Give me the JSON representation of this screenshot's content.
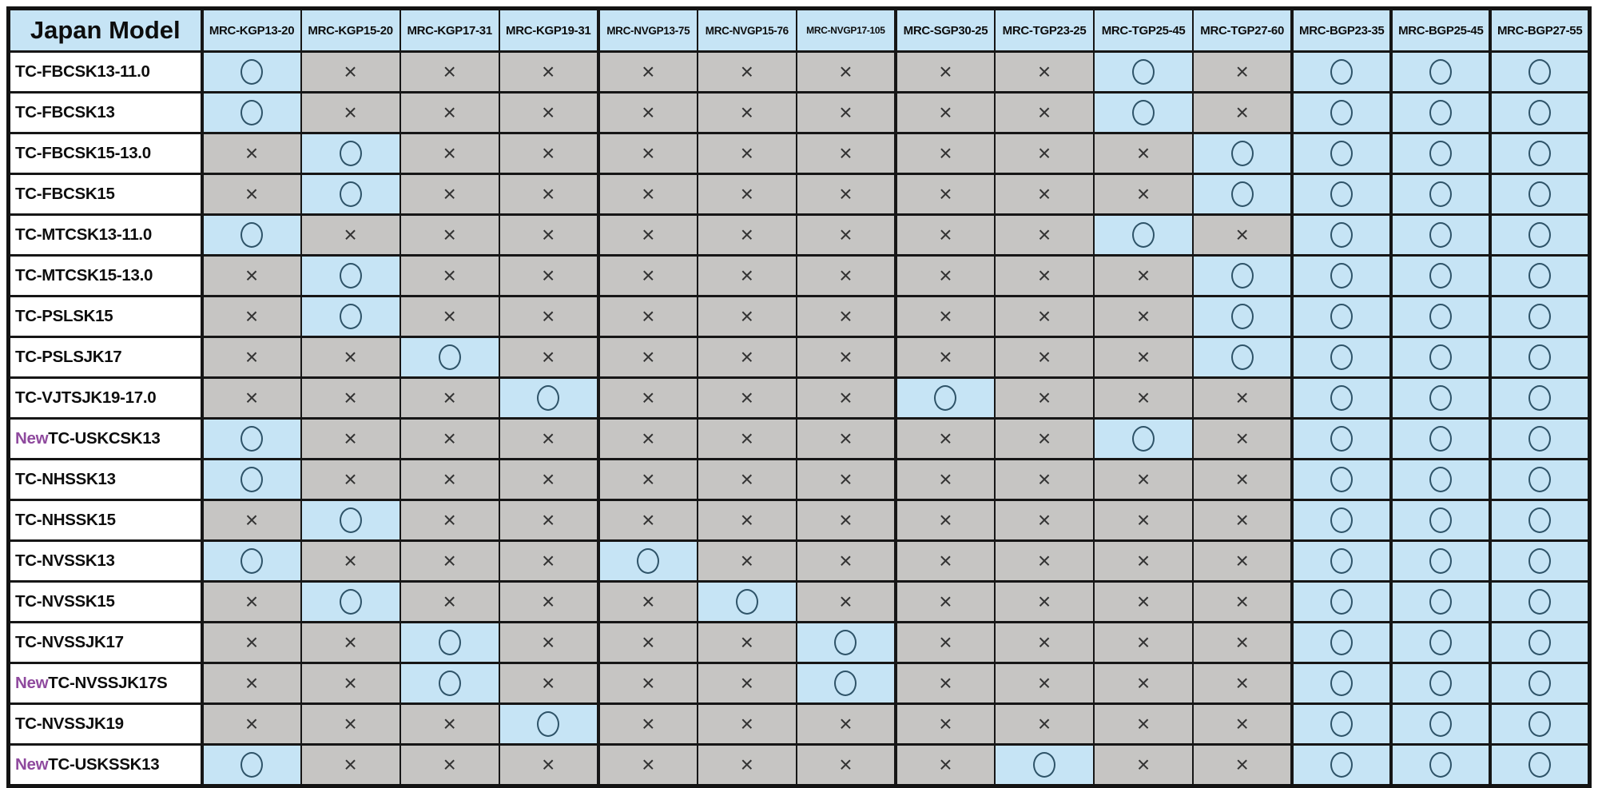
{
  "page": {
    "background": "#ffffff"
  },
  "labels": {
    "new_badge": "New"
  },
  "legend": {
    "compatible": "○",
    "not_compatible": "×"
  },
  "colors": {
    "compatible_bg": "#c6e4f5",
    "not_compatible_bg": "#c6c5c3",
    "header_bg": "#c6e4f5",
    "row_label_bg": "#ffffff",
    "new_badge_color": "#8f4a9e",
    "circle_stroke": "#2e5368",
    "cross_color": "#333333",
    "grid_line": "#161616"
  },
  "chart_data": {
    "type": "table",
    "title": "Japan Model",
    "columns": [
      "MRC-KGP13-20",
      "MRC-KGP15-20",
      "MRC-KGP17-31",
      "MRC-KGP19-31",
      "MRC-NVGP13-75",
      "MRC-NVGP15-76",
      "MRC-NVGP17-105",
      "MRC-SGP30-25",
      "MRC-TGP23-25",
      "MRC-TGP25-45",
      "MRC-TGP27-60",
      "MRC-BGP23-35",
      "MRC-BGP25-45",
      "MRC-BGP27-55"
    ],
    "cell_values_legend": {
      "O": "compatible (○)",
      "X": "not compatible (×)"
    },
    "rows": [
      {
        "model": "TC-FBCSK13-11.0",
        "new": false,
        "cells": [
          "O",
          "X",
          "X",
          "X",
          "X",
          "X",
          "X",
          "X",
          "X",
          "O",
          "X",
          "O",
          "O",
          "O"
        ]
      },
      {
        "model": "TC-FBCSK13",
        "new": false,
        "cells": [
          "O",
          "X",
          "X",
          "X",
          "X",
          "X",
          "X",
          "X",
          "X",
          "O",
          "X",
          "O",
          "O",
          "O"
        ]
      },
      {
        "model": "TC-FBCSK15-13.0",
        "new": false,
        "cells": [
          "X",
          "O",
          "X",
          "X",
          "X",
          "X",
          "X",
          "X",
          "X",
          "X",
          "O",
          "O",
          "O",
          "O"
        ]
      },
      {
        "model": "TC-FBCSK15",
        "new": false,
        "cells": [
          "X",
          "O",
          "X",
          "X",
          "X",
          "X",
          "X",
          "X",
          "X",
          "X",
          "O",
          "O",
          "O",
          "O"
        ]
      },
      {
        "model": "TC-MTCSK13-11.0",
        "new": false,
        "cells": [
          "O",
          "X",
          "X",
          "X",
          "X",
          "X",
          "X",
          "X",
          "X",
          "O",
          "X",
          "O",
          "O",
          "O"
        ]
      },
      {
        "model": "TC-MTCSK15-13.0",
        "new": false,
        "cells": [
          "X",
          "O",
          "X",
          "X",
          "X",
          "X",
          "X",
          "X",
          "X",
          "X",
          "O",
          "O",
          "O",
          "O"
        ]
      },
      {
        "model": "TC-PSLSK15",
        "new": false,
        "cells": [
          "X",
          "O",
          "X",
          "X",
          "X",
          "X",
          "X",
          "X",
          "X",
          "X",
          "O",
          "O",
          "O",
          "O"
        ]
      },
      {
        "model": "TC-PSLSJK17",
        "new": false,
        "cells": [
          "X",
          "X",
          "O",
          "X",
          "X",
          "X",
          "X",
          "X",
          "X",
          "X",
          "O",
          "O",
          "O",
          "O"
        ]
      },
      {
        "model": "TC-VJTSJK19-17.0",
        "new": false,
        "cells": [
          "X",
          "X",
          "X",
          "O",
          "X",
          "X",
          "X",
          "O",
          "X",
          "X",
          "X",
          "O",
          "O",
          "O"
        ]
      },
      {
        "model": "TC-USKCSK13",
        "new": true,
        "cells": [
          "O",
          "X",
          "X",
          "X",
          "X",
          "X",
          "X",
          "X",
          "X",
          "O",
          "X",
          "O",
          "O",
          "O"
        ]
      },
      {
        "model": "TC-NHSSK13",
        "new": false,
        "cells": [
          "O",
          "X",
          "X",
          "X",
          "X",
          "X",
          "X",
          "X",
          "X",
          "X",
          "X",
          "O",
          "O",
          "O"
        ]
      },
      {
        "model": "TC-NHSSK15",
        "new": false,
        "cells": [
          "X",
          "O",
          "X",
          "X",
          "X",
          "X",
          "X",
          "X",
          "X",
          "X",
          "X",
          "O",
          "O",
          "O"
        ]
      },
      {
        "model": "TC-NVSSK13",
        "new": false,
        "cells": [
          "O",
          "X",
          "X",
          "X",
          "O",
          "X",
          "X",
          "X",
          "X",
          "X",
          "X",
          "O",
          "O",
          "O"
        ]
      },
      {
        "model": "TC-NVSSK15",
        "new": false,
        "cells": [
          "X",
          "O",
          "X",
          "X",
          "X",
          "O",
          "X",
          "X",
          "X",
          "X",
          "X",
          "O",
          "O",
          "O"
        ]
      },
      {
        "model": "TC-NVSSJK17",
        "new": false,
        "cells": [
          "X",
          "X",
          "O",
          "X",
          "X",
          "X",
          "O",
          "X",
          "X",
          "X",
          "X",
          "O",
          "O",
          "O"
        ]
      },
      {
        "model": "TC-NVSSJK17S",
        "new": true,
        "cells": [
          "X",
          "X",
          "O",
          "X",
          "X",
          "X",
          "O",
          "X",
          "X",
          "X",
          "X",
          "O",
          "O",
          "O"
        ]
      },
      {
        "model": "TC-NVSSJK19",
        "new": false,
        "cells": [
          "X",
          "X",
          "X",
          "O",
          "X",
          "X",
          "X",
          "X",
          "X",
          "X",
          "X",
          "O",
          "O",
          "O"
        ]
      },
      {
        "model": "TC-USKSSK13",
        "new": true,
        "cells": [
          "O",
          "X",
          "X",
          "X",
          "X",
          "X",
          "X",
          "X",
          "O",
          "X",
          "X",
          "O",
          "O",
          "O"
        ]
      }
    ]
  }
}
